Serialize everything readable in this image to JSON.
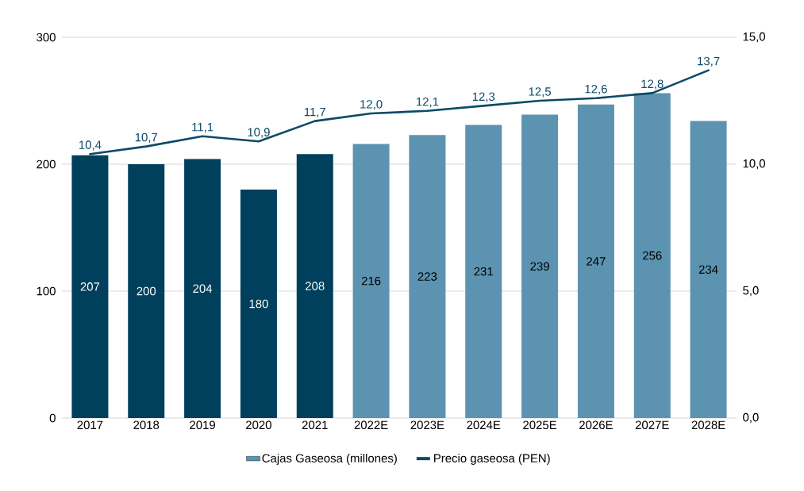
{
  "chart_data": {
    "type": "bar",
    "categories": [
      "2017",
      "2018",
      "2019",
      "2020",
      "2021",
      "2022E",
      "2023E",
      "2024E",
      "2025E",
      "2026E",
      "2027E",
      "2028E"
    ],
    "series": [
      {
        "name": "Cajas Gaseosa (millones)",
        "color": "#5b93b0",
        "colors": [
          "#00405c",
          "#00405c",
          "#00405c",
          "#00405c",
          "#00405c",
          "#5b93b0",
          "#5b93b0",
          "#5b93b0",
          "#5b93b0",
          "#5b93b0",
          "#5b93b0",
          "#5b93b0"
        ],
        "values": [
          207,
          200,
          204,
          180,
          208,
          216,
          223,
          231,
          239,
          247,
          256,
          234
        ],
        "value_labels": [
          "207",
          "200",
          "204",
          "180",
          "208",
          "216",
          "223",
          "231",
          "239",
          "247",
          "256",
          "234"
        ]
      },
      {
        "name": "Precio gaseosa (PEN)",
        "type": "line",
        "axis": "y2",
        "color": "#0b4a66",
        "values": [
          10.4,
          10.7,
          11.1,
          10.9,
          11.7,
          12.0,
          12.1,
          12.3,
          12.5,
          12.6,
          12.8,
          13.7
        ],
        "value_labels": [
          "10,4",
          "10,7",
          "11,1",
          "10,9",
          "11,7",
          "12,0",
          "12,1",
          "12,3",
          "12,5",
          "12,6",
          "12,8",
          "13,7"
        ]
      }
    ],
    "ylim": [
      0,
      300
    ],
    "yticks": [
      0,
      100,
      200,
      300
    ],
    "y2lim": [
      0,
      15
    ],
    "y2ticks": [
      {
        "value": 0,
        "label": "0,0"
      },
      {
        "value": 5,
        "label": "5,0"
      },
      {
        "value": 10,
        "label": "10,0"
      },
      {
        "value": 15,
        "label": "15,0"
      }
    ],
    "grid": "y",
    "legend": "bottom",
    "marker": "none",
    "line_style": "solid"
  }
}
